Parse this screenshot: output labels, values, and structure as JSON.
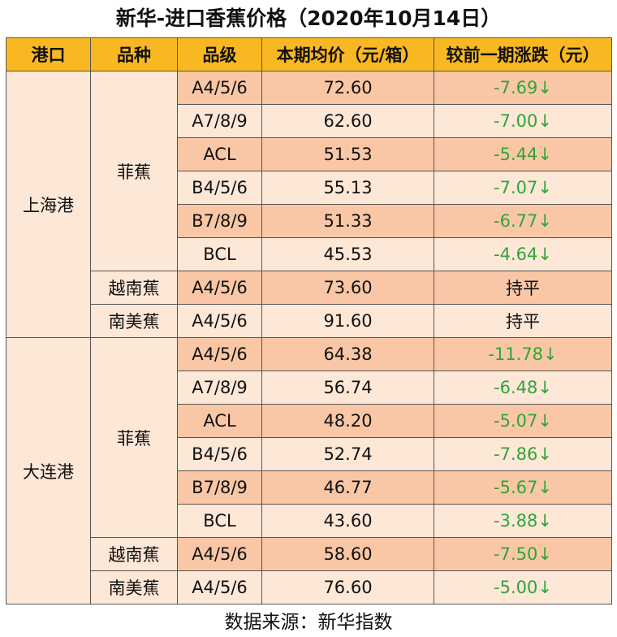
{
  "title": "新华-进口香蕉价格（2020年10月14日）",
  "headers": [
    "港口",
    "品种",
    "品级",
    "本期均价（元/箱）",
    "较前一期涨跌（元）"
  ],
  "ports": [
    {
      "name": "上海港",
      "varieties": [
        {
          "name": "菲蕉",
          "rows": [
            {
              "grade": "A4/5/6",
              "price": "72.60",
              "change": "-7.69↓",
              "trend": "down"
            },
            {
              "grade": "A7/8/9",
              "price": "62.60",
              "change": "-7.00↓",
              "trend": "down"
            },
            {
              "grade": "ACL",
              "price": "51.53",
              "change": "-5.44↓",
              "trend": "down"
            },
            {
              "grade": "B4/5/6",
              "price": "55.13",
              "change": "-7.07↓",
              "trend": "down"
            },
            {
              "grade": "B7/8/9",
              "price": "51.33",
              "change": "-6.77↓",
              "trend": "down"
            },
            {
              "grade": "BCL",
              "price": "45.53",
              "change": "-4.64↓",
              "trend": "down"
            }
          ]
        },
        {
          "name": "越南蕉",
          "rows": [
            {
              "grade": "A4/5/6",
              "price": "73.60",
              "change": "持平",
              "trend": "flat"
            }
          ]
        },
        {
          "name": "南美蕉",
          "rows": [
            {
              "grade": "A4/5/6",
              "price": "91.60",
              "change": "持平",
              "trend": "flat"
            }
          ]
        }
      ]
    },
    {
      "name": "大连港",
      "varieties": [
        {
          "name": "菲蕉",
          "rows": [
            {
              "grade": "A4/5/6",
              "price": "64.38",
              "change": "-11.78↓",
              "trend": "down"
            },
            {
              "grade": "A7/8/9",
              "price": "56.74",
              "change": "-6.48↓",
              "trend": "down"
            },
            {
              "grade": "ACL",
              "price": "48.20",
              "change": "-5.07↓",
              "trend": "down"
            },
            {
              "grade": "B4/5/6",
              "price": "52.74",
              "change": "-7.86↓",
              "trend": "down"
            },
            {
              "grade": "B7/8/9",
              "price": "46.77",
              "change": "-5.67↓",
              "trend": "down"
            },
            {
              "grade": "BCL",
              "price": "43.60",
              "change": "-3.88↓",
              "trend": "down"
            }
          ]
        },
        {
          "name": "越南蕉",
          "rows": [
            {
              "grade": "A4/5/6",
              "price": "58.60",
              "change": "-7.50↓",
              "trend": "down"
            }
          ]
        },
        {
          "name": "南美蕉",
          "rows": [
            {
              "grade": "A4/5/6",
              "price": "76.60",
              "change": "-5.00↓",
              "trend": "down"
            }
          ]
        }
      ]
    }
  ],
  "source": "数据来源：新华指数",
  "colors": {
    "header": "#f8b822",
    "row_dark": "#f9c7a5",
    "row_light": "#fde7d7",
    "down": "#2ea63a"
  }
}
